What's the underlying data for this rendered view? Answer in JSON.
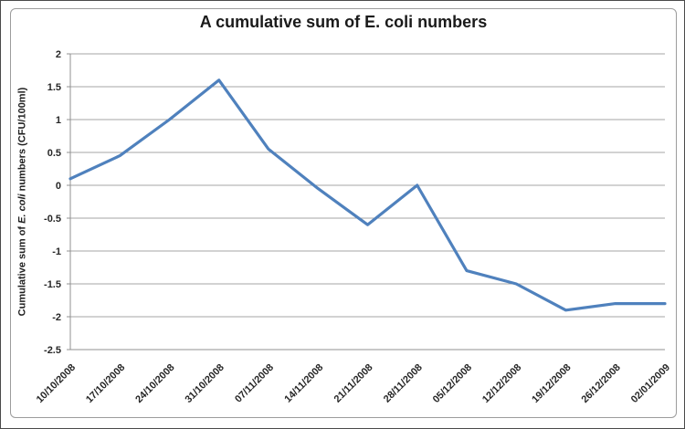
{
  "chart_data": {
    "type": "line",
    "title": "A cumulative sum of E. coli numbers",
    "xlabel": "",
    "ylabel": "Cumulative sum of E. coli numbers (CFU/100ml)",
    "ylabel_parts": {
      "prefix": "Cumulative sum of ",
      "italic": "E. coli",
      "suffix": " numbers (CFU/100ml)"
    },
    "categories": [
      "10/10/2008",
      "17/10/2008",
      "24/10/2008",
      "31/10/2008",
      "07/11/2008",
      "14/11/2008",
      "21/11/2008",
      "28/11/2008",
      "05/12/2008",
      "12/12/2008",
      "19/12/2008",
      "26/12/2008",
      "02/01/2009"
    ],
    "values": [
      0.1,
      0.45,
      1.0,
      1.6,
      0.55,
      -0.05,
      -0.6,
      0.0,
      -1.3,
      -1.5,
      -1.9,
      -1.8,
      -1.8
    ],
    "ylim": [
      -2.5,
      2
    ],
    "yticks": [
      2,
      1.5,
      1,
      0.5,
      0,
      -0.5,
      -1,
      -1.5,
      -2,
      -2.5
    ],
    "grid": true,
    "legend": false,
    "x_label_rotation_deg": 45,
    "colors": {
      "series": "#4F81BD",
      "gridline": "#A6A6A6",
      "axis": "#909090",
      "tick_text": "#262626",
      "title_text": "#1A1A1A",
      "frame_border": "#9C9C9C",
      "background": "#FFFFFF"
    }
  }
}
